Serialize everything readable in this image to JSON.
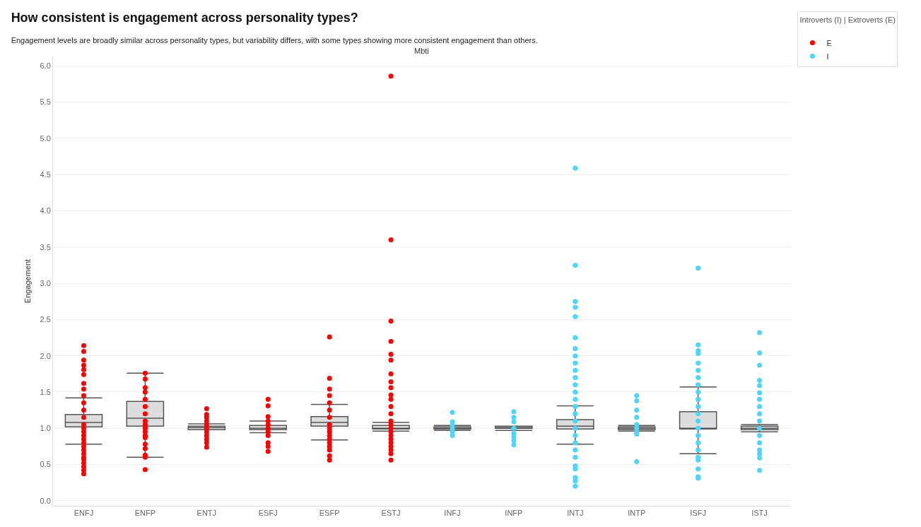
{
  "chart_data": {
    "type": "box",
    "title": "How consistent is engagement across personality types?",
    "subtitle": "Engagement levels are broadly similar across personality types, but variability differs, with some types showing more consistent engagement than others.",
    "xlabel": "Mbti",
    "ylabel": "Engagement",
    "legend_title": "Introverts (I) | Extroverts (E)",
    "categories": [
      "ENFJ",
      "ENFP",
      "ENTJ",
      "ESFJ",
      "ESFP",
      "ESTJ",
      "INFJ",
      "INFP",
      "INTJ",
      "INTP",
      "ISFJ",
      "ISTJ"
    ],
    "boxes": [
      {
        "low": 0.78,
        "q1": 1.02,
        "median": 1.08,
        "q3": 1.19,
        "high": 1.42
      },
      {
        "low": 0.6,
        "q1": 1.03,
        "median": 1.14,
        "q3": 1.37,
        "high": 1.76
      },
      {
        "low": 0.98,
        "q1": 0.98,
        "median": 1.01,
        "q3": 1.03,
        "high": 1.06
      },
      {
        "low": 0.94,
        "q1": 0.98,
        "median": 1.0,
        "q3": 1.04,
        "high": 1.1
      },
      {
        "low": 0.84,
        "q1": 1.03,
        "median": 1.08,
        "q3": 1.16,
        "high": 1.33
      },
      {
        "low": 0.96,
        "q1": 0.99,
        "median": 1.0,
        "q3": 1.04,
        "high": 1.08
      },
      {
        "low": 0.97,
        "q1": 0.99,
        "median": 1.0,
        "q3": 1.02,
        "high": 1.04
      },
      {
        "low": 0.97,
        "q1": 1.0,
        "median": 1.01,
        "q3": 1.03,
        "high": 1.03
      },
      {
        "low": 0.78,
        "q1": 0.99,
        "median": 1.03,
        "q3": 1.12,
        "high": 1.31
      },
      {
        "low": 0.96,
        "q1": 0.98,
        "median": 1.0,
        "q3": 1.02,
        "high": 1.04
      },
      {
        "low": 0.65,
        "q1": 0.99,
        "median": 1.0,
        "q3": 1.23,
        "high": 1.57
      },
      {
        "low": 0.95,
        "q1": 0.98,
        "median": 1.0,
        "q3": 1.03,
        "high": 1.05
      }
    ],
    "series": [
      {
        "name": "E",
        "type": "scatter",
        "color": "#ff0000",
        "x": [
          "ENFJ",
          "ENFJ",
          "ENFJ",
          "ENFJ",
          "ENFJ",
          "ENFJ",
          "ENFJ",
          "ENFJ",
          "ENFJ",
          "ENFJ",
          "ENFJ",
          "ENFJ",
          "ENFJ",
          "ENFJ",
          "ENFJ",
          "ENFJ",
          "ENFJ",
          "ENFJ",
          "ENFJ",
          "ENFJ",
          "ENFJ",
          "ENFJ",
          "ENFJ",
          "ENFJ",
          "ENFJ",
          "ENFJ",
          "ENFJ",
          "ENFP",
          "ENFP",
          "ENFP",
          "ENFP",
          "ENFP",
          "ENFP",
          "ENFP",
          "ENFP",
          "ENFP",
          "ENFP",
          "ENFP",
          "ENFP",
          "ENFP",
          "ENFP",
          "ENFP",
          "ENFP",
          "ENFP",
          "ENFP",
          "ENFP",
          "ENTJ",
          "ENTJ",
          "ENTJ",
          "ENTJ",
          "ENTJ",
          "ENTJ",
          "ENTJ",
          "ENTJ",
          "ENTJ",
          "ENTJ",
          "ENTJ",
          "ESFJ",
          "ESFJ",
          "ESFJ",
          "ESFJ",
          "ESFJ",
          "ESFJ",
          "ESFJ",
          "ESFJ",
          "ESFJ",
          "ESFJ",
          "ESFJ",
          "ESFP",
          "ESFP",
          "ESFP",
          "ESFP",
          "ESFP",
          "ESFP",
          "ESFP",
          "ESFP",
          "ESFP",
          "ESFP",
          "ESFP",
          "ESFP",
          "ESFP",
          "ESFP",
          "ESFP",
          "ESFP",
          "ESFP",
          "ESTJ",
          "ESTJ",
          "ESTJ",
          "ESTJ",
          "ESTJ",
          "ESTJ",
          "ESTJ",
          "ESTJ",
          "ESTJ",
          "ESTJ",
          "ESTJ",
          "ESTJ",
          "ESTJ",
          "ESTJ",
          "ESTJ",
          "ESTJ",
          "ESTJ",
          "ESTJ",
          "ESTJ",
          "ESTJ",
          "ESTJ",
          "ESTJ",
          "ESTJ",
          "ESTJ"
        ],
        "values": [
          2.14,
          2.06,
          1.94,
          1.87,
          1.81,
          1.74,
          1.62,
          1.54,
          1.45,
          1.35,
          1.25,
          1.15,
          1.05,
          1.0,
          0.95,
          0.9,
          0.85,
          0.8,
          0.75,
          0.7,
          0.65,
          0.6,
          0.57,
          0.52,
          0.47,
          0.42,
          0.37,
          1.76,
          1.68,
          1.56,
          1.5,
          1.4,
          1.3,
          1.2,
          1.1,
          1.05,
          1.0,
          0.95,
          0.9,
          0.87,
          0.78,
          0.72,
          0.63,
          0.6,
          0.43,
          1.0,
          1.27,
          1.19,
          1.15,
          1.1,
          1.05,
          1.0,
          0.95,
          0.9,
          0.85,
          0.8,
          0.74,
          1.4,
          1.31,
          1.16,
          1.1,
          1.05,
          1.0,
          0.95,
          0.9,
          0.8,
          0.75,
          0.68,
          2.26,
          1.69,
          1.54,
          1.45,
          1.35,
          1.25,
          1.15,
          1.05,
          1.0,
          0.95,
          0.9,
          0.85,
          0.8,
          0.75,
          0.7,
          0.62,
          0.56,
          5.86,
          3.6,
          2.48,
          2.2,
          2.02,
          1.94,
          1.75,
          1.64,
          1.56,
          1.46,
          1.4,
          1.3,
          1.2,
          1.1,
          1.05,
          1.0,
          0.95,
          0.9,
          0.85,
          0.8,
          0.75,
          0.7,
          0.65,
          0.56
        ]
      },
      {
        "name": "I",
        "type": "scatter",
        "color": "#4dd5fb",
        "x": [
          "INFJ",
          "INFJ",
          "INFJ",
          "INFJ",
          "INFJ",
          "INFJ",
          "INFP",
          "INFP",
          "INFP",
          "INFP",
          "INFP",
          "INFP",
          "INFP",
          "INFP",
          "INTJ",
          "INTJ",
          "INTJ",
          "INTJ",
          "INTJ",
          "INTJ",
          "INTJ",
          "INTJ",
          "INTJ",
          "INTJ",
          "INTJ",
          "INTJ",
          "INTJ",
          "INTJ",
          "INTJ",
          "INTJ",
          "INTJ",
          "INTJ",
          "INTJ",
          "INTJ",
          "INTJ",
          "INTJ",
          "INTJ",
          "INTJ",
          "INTJ",
          "INTJ",
          "INTJ",
          "INTP",
          "INTP",
          "INTP",
          "INTP",
          "INTP",
          "INTP",
          "INTP",
          "INTP",
          "INTP",
          "ISFJ",
          "ISFJ",
          "ISFJ",
          "ISFJ",
          "ISFJ",
          "ISFJ",
          "ISFJ",
          "ISFJ",
          "ISFJ",
          "ISFJ",
          "ISFJ",
          "ISFJ",
          "ISFJ",
          "ISFJ",
          "ISFJ",
          "ISFJ",
          "ISFJ",
          "ISFJ",
          "ISFJ",
          "ISFJ",
          "ISFJ",
          "ISFJ",
          "ISTJ",
          "ISTJ",
          "ISTJ",
          "ISTJ",
          "ISTJ",
          "ISTJ",
          "ISTJ",
          "ISTJ",
          "ISTJ",
          "ISTJ",
          "ISTJ",
          "ISTJ",
          "ISTJ",
          "ISTJ",
          "ISTJ",
          "ISTJ",
          "ISTJ"
        ],
        "values": [
          1.22,
          1.09,
          1.05,
          1.0,
          0.95,
          0.9,
          1.23,
          1.15,
          1.09,
          1.0,
          0.93,
          0.88,
          0.83,
          0.77,
          4.59,
          3.25,
          2.75,
          2.67,
          2.54,
          2.25,
          2.1,
          1.9,
          1.7,
          1.5,
          1.3,
          1.1,
          1.0,
          0.9,
          0.8,
          0.7,
          0.6,
          0.48,
          0.44,
          0.32,
          0.27,
          0.2,
          2.0,
          1.8,
          1.6,
          1.4,
          1.2,
          1.45,
          1.38,
          1.25,
          1.15,
          1.05,
          1.0,
          0.95,
          0.92,
          0.54,
          3.21,
          2.15,
          2.07,
          2.03,
          1.9,
          1.8,
          1.7,
          1.6,
          1.5,
          1.4,
          1.3,
          1.2,
          1.1,
          1.0,
          0.9,
          0.8,
          0.7,
          0.56,
          0.44,
          0.33,
          0.31,
          0.6,
          2.32,
          2.04,
          1.87,
          1.66,
          1.59,
          1.49,
          1.4,
          1.3,
          1.2,
          1.1,
          1.0,
          0.9,
          0.8,
          0.7,
          0.59,
          0.42,
          0.65
        ]
      }
    ],
    "ylim": [
      -0.07,
      6.13
    ],
    "yticks": [
      {
        "value": 0,
        "label": "0.0"
      },
      0.5,
      {
        "value": 1,
        "label": "1.0"
      },
      1.5,
      {
        "value": 2,
        "label": "2.0"
      },
      2.5,
      {
        "value": 3,
        "label": "3.0"
      },
      3.5,
      {
        "value": 4,
        "label": "4.0"
      },
      4.5,
      {
        "value": 5,
        "label": "5.0"
      },
      5.5,
      {
        "value": 6,
        "label": "6.0"
      }
    ],
    "grid": "y",
    "legend": "top right",
    "marker": "circle"
  }
}
